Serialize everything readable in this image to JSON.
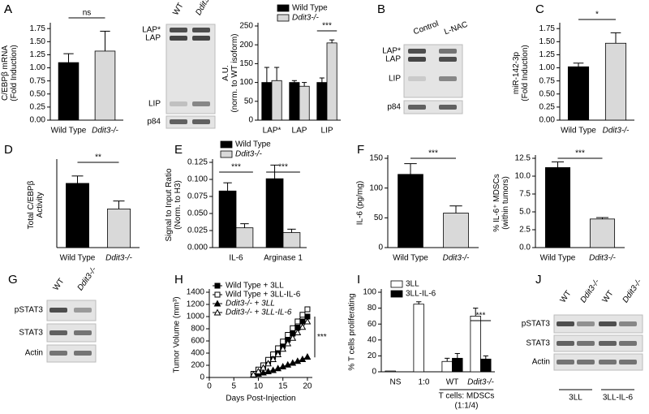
{
  "blots": [
    {
      "panel": "A",
      "lanes": [
        "WT",
        "Ddit3-/-"
      ],
      "rows": [
        "LAP*",
        "LAP",
        "LIP",
        "p84"
      ]
    },
    {
      "panel": "B",
      "lanes": [
        "Control",
        "L-NAC"
      ],
      "rows": [
        "LAP*",
        "LAP",
        "LIP",
        "p84"
      ]
    },
    {
      "panel": "G",
      "lanes": [
        "WT",
        "Ddit3-/-"
      ],
      "rows": [
        "pSTAT3",
        "STAT3",
        "Actin"
      ]
    },
    {
      "panel": "J",
      "lanes": [
        "WT",
        "Ddit3-/-",
        "WT",
        "Ddit3-/-"
      ],
      "rows": [
        "pSTAT3",
        "STAT3",
        "Actin"
      ],
      "groups": [
        "3LL",
        "3LL-IL-6"
      ]
    }
  ],
  "chart_data": [
    {
      "type": "bar",
      "panel": "A",
      "ylabel": [
        "C/EBPβ mRNA",
        "(Fold Induction)"
      ],
      "categories": [
        "Wild Type",
        "Ddit3-/-"
      ],
      "values": [
        1.1,
        1.32
      ],
      "errors": [
        0.17,
        0.38
      ],
      "colors": [
        "#000000",
        "#d9d9d9"
      ],
      "ylim": [
        0,
        1.8
      ],
      "yticks": [
        {
          "value": 0,
          "label": "0.00"
        },
        0.25,
        {
          "value": 0.5,
          "label": "0.50"
        },
        0.75,
        {
          "value": 1,
          "label": "1.00"
        },
        1.25,
        {
          "value": 1.5,
          "label": "1.50"
        },
        1.75
      ],
      "annotations": [
        "ns"
      ]
    },
    {
      "type": "bar",
      "ylabel": [
        "A.U.",
        "(norm. to WT isoform)"
      ],
      "categories": [
        "LAP*",
        "LAP",
        "LIP"
      ],
      "series": [
        {
          "name": "Wild Type",
          "color": "#000000",
          "values": [
            100,
            100,
            100
          ],
          "errors": [
            40,
            5,
            12
          ]
        },
        {
          "name": "Ddit3-/-",
          "color": "#d9d9d9",
          "values": [
            105,
            90,
            205
          ],
          "errors": [
            35,
            10,
            8
          ]
        }
      ],
      "ylim": [
        0,
        250
      ],
      "yticks": [
        0,
        50,
        100,
        150,
        200,
        250
      ],
      "annotations": [
        "***"
      ]
    },
    {
      "type": "bar",
      "panel": "C",
      "ylabel": [
        "miR-142-3p",
        "(Fold Induction)"
      ],
      "categories": [
        "Wild Type",
        "Ddit3-/-"
      ],
      "values": [
        1.02,
        1.47
      ],
      "errors": [
        0.07,
        0.2
      ],
      "colors": [
        "#000000",
        "#d9d9d9"
      ],
      "ylim": [
        0,
        1.8
      ],
      "yticks": [
        {
          "value": 0,
          "label": "0.00"
        },
        0.25,
        {
          "value": 0.5,
          "label": "0.50"
        },
        0.75,
        {
          "value": 1,
          "label": "1.00"
        },
        1.25,
        {
          "value": 1.5,
          "label": "1.50"
        },
        1.75
      ],
      "annotations": [
        "*"
      ]
    },
    {
      "type": "bar",
      "panel": "D",
      "ylabel": [
        "Total C/EBPβ",
        "Activity"
      ],
      "categories": [
        "Wild Type",
        "Ddit3-/-"
      ],
      "values": [
        113,
        68
      ],
      "errors": [
        13,
        14
      ],
      "colors": [
        "#000000",
        "#d9d9d9"
      ],
      "ylim": [
        0,
        150
      ],
      "annotations": [
        "**"
      ]
    },
    {
      "type": "bar",
      "panel": "E",
      "ylabel": [
        "Signal to Input Ratio",
        "(Norm. to H3)"
      ],
      "categories": [
        "IL-6",
        "Arginase 1"
      ],
      "series": [
        {
          "name": "Wild Type",
          "color": "#000000",
          "values": [
            0.083,
            0.101
          ],
          "errors": [
            0.012,
            0.02
          ]
        },
        {
          "name": "Ddit3-/-",
          "color": "#d9d9d9",
          "values": [
            0.029,
            0.022
          ],
          "errors": [
            0.006,
            0.005
          ]
        }
      ],
      "ylim": [
        0,
        0.125
      ],
      "yticks": [
        {
          "value": 0,
          "label": "0.000"
        },
        0.025,
        {
          "value": 0.05,
          "label": "0.050"
        },
        0.075,
        {
          "value": 0.1,
          "label": "0.100"
        },
        0.125
      ],
      "annotations": [
        "***",
        "***"
      ]
    },
    {
      "type": "bar",
      "panel": "F",
      "ylabel": [
        "IL-6 (pg/mg)"
      ],
      "categories": [
        "Wild Type",
        "Ddit3-/-"
      ],
      "values": [
        123,
        58
      ],
      "errors": [
        18,
        12
      ],
      "colors": [
        "#000000",
        "#d9d9d9"
      ],
      "ylim": [
        0,
        150
      ],
      "yticks": [
        0,
        50,
        100,
        150
      ],
      "annotations": [
        "***"
      ]
    },
    {
      "type": "bar",
      "ylabel": [
        "% IL-6⁺ MDSCs",
        "(within tumors)"
      ],
      "categories": [
        "Wild Type",
        "Ddit3-/-"
      ],
      "values": [
        11.2,
        4.0
      ],
      "errors": [
        0.8,
        0.2
      ],
      "colors": [
        "#000000",
        "#d9d9d9"
      ],
      "ylim": [
        0,
        12.5
      ],
      "yticks": [
        {
          "value": 0,
          "label": "0.0"
        },
        2.5,
        {
          "value": 5,
          "label": "5.0"
        },
        7.5,
        {
          "value": 10,
          "label": "10.0"
        },
        12.5
      ],
      "annotations": [
        "***"
      ]
    },
    {
      "type": "line",
      "panel": "H",
      "ylabel": [
        "Tumor Volume (mm³)"
      ],
      "xlabel": "Days Post-Injection",
      "x": [
        9,
        10,
        11,
        12,
        13,
        14,
        15,
        16,
        17,
        18,
        19,
        20
      ],
      "series": [
        {
          "name": "Wild Type + 3LL",
          "color": "#000000",
          "marker": "square",
          "filled": true,
          "values": [
            60,
            120,
            180,
            260,
            340,
            420,
            520,
            620,
            720,
            820,
            920,
            1000
          ]
        },
        {
          "name": "Wild Type + 3LL-IL-6",
          "color": "#000000",
          "marker": "square",
          "filled": false,
          "values": [
            60,
            130,
            200,
            290,
            380,
            480,
            590,
            700,
            810,
            920,
            1030,
            1120
          ]
        },
        {
          "name": "Ddit3-/- + 3LL",
          "color": "#000000",
          "marker": "triangle",
          "filled": true,
          "values": [
            40,
            60,
            80,
            100,
            120,
            150,
            180,
            210,
            240,
            270,
            300,
            340
          ]
        },
        {
          "name": "Ddit3-/- + 3LL-IL-6",
          "color": "#000000",
          "marker": "triangle",
          "filled": false,
          "values": [
            50,
            100,
            160,
            230,
            300,
            380,
            470,
            560,
            650,
            740,
            830,
            920
          ]
        }
      ],
      "xlim": [
        0,
        21
      ],
      "xticks": [
        0,
        5,
        10,
        15,
        20
      ],
      "ylim": [
        0,
        1400
      ],
      "yticks": [
        0,
        200,
        400,
        600,
        800,
        1000,
        1200,
        1400
      ],
      "annotations": [
        "***"
      ]
    },
    {
      "type": "bar",
      "panel": "I",
      "ylabel": [
        "% T cells proliferating"
      ],
      "categories": [
        "NS",
        "1:0",
        "WT",
        "Ddit3-/-"
      ],
      "series": [
        {
          "name": "3LL",
          "color": "#ffffff",
          "values": [
            1,
            85,
            13,
            70
          ],
          "errors": [
            null,
            3,
            4,
            10
          ]
        },
        {
          "name": "3LL-IL-6",
          "color": "#000000",
          "values": [
            null,
            null,
            17,
            16
          ],
          "errors": [
            null,
            null,
            6,
            4
          ]
        }
      ],
      "ylim": [
        0,
        100
      ],
      "yticks": [
        0,
        20,
        40,
        60,
        80,
        100
      ],
      "group_label": [
        "T cells: MDSCs",
        "(1:1/4)"
      ],
      "annotations": [
        "***"
      ]
    }
  ]
}
